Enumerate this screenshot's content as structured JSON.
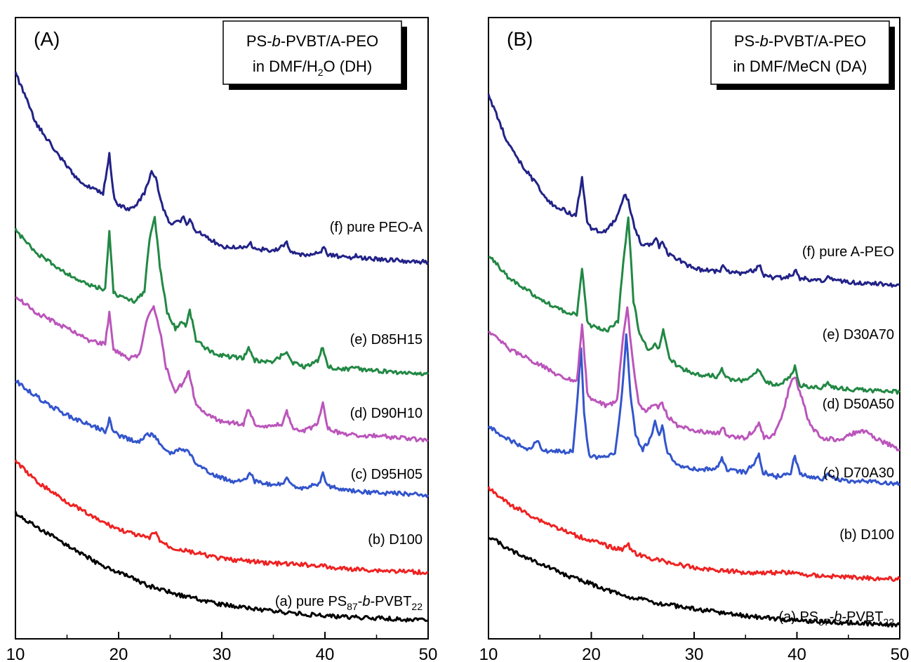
{
  "chart_data": [
    {
      "type": "line",
      "panel_label": "(A)",
      "legend": {
        "line1": [
          "PS-",
          "b",
          "-PVBT/A-PEO"
        ],
        "line2": [
          "in DMF/H",
          "2",
          "O (DH)"
        ]
      },
      "xlim": [
        10,
        50
      ],
      "xticks": [
        "10",
        "20",
        "30",
        "40",
        "50"
      ],
      "grid": false,
      "series": [
        {
          "label": [
            "(a) pure PS",
            "87",
            "-",
            "b",
            "-PVBT",
            "22"
          ],
          "color": "#000000",
          "x": [
            10,
            12,
            15,
            18,
            20,
            23,
            26,
            30,
            35,
            40,
            45,
            50
          ],
          "y": [
            0.52,
            0.46,
            0.38,
            0.3,
            0.26,
            0.2,
            0.16,
            0.12,
            0.09,
            0.07,
            0.06,
            0.05
          ]
        },
        {
          "label": [
            "(b) D100"
          ],
          "color": "#ee2222",
          "x": [
            10,
            12,
            15,
            18,
            20,
            22,
            23,
            23.5,
            24,
            25,
            28,
            30,
            35,
            39.7,
            40.5,
            45,
            50
          ],
          "y": [
            0.75,
            0.66,
            0.57,
            0.49,
            0.45,
            0.42,
            0.41,
            0.44,
            0.4,
            0.37,
            0.34,
            0.32,
            0.3,
            0.29,
            0.28,
            0.27,
            0.26
          ]
        },
        {
          "label": [
            "(c) D95H05"
          ],
          "color": "#3355cc",
          "x": [
            10,
            13,
            15,
            17,
            18.7,
            19.1,
            19.5,
            20,
            22,
            22.8,
            23.4,
            24.2,
            25,
            26,
            26.8,
            27.6,
            29,
            31,
            32.3,
            32.7,
            33.2,
            35,
            36,
            36.3,
            36.8,
            38,
            39.4,
            39.8,
            40.3,
            42,
            45,
            50
          ],
          "y": [
            1.1,
            1.0,
            0.95,
            0.91,
            0.88,
            0.93,
            0.88,
            0.86,
            0.83,
            0.87,
            0.86,
            0.82,
            0.78,
            0.8,
            0.79,
            0.73,
            0.69,
            0.66,
            0.67,
            0.7,
            0.66,
            0.64,
            0.65,
            0.67,
            0.64,
            0.63,
            0.65,
            0.69,
            0.64,
            0.62,
            0.61,
            0.6
          ]
        },
        {
          "label": [
            "(d) D90H10"
          ],
          "color": "#bb55bb",
          "x": [
            10,
            12,
            15,
            17,
            18.7,
            19.1,
            19.5,
            20,
            21,
            22,
            22.8,
            23.4,
            24,
            24.6,
            25.5,
            26.2,
            26.8,
            27.4,
            28.5,
            30,
            32.1,
            32.6,
            33.2,
            34.5,
            35.8,
            36.3,
            36.8,
            38,
            39.3,
            39.8,
            40.3,
            41.5,
            43,
            45,
            47,
            50
          ],
          "y": [
            1.47,
            1.4,
            1.33,
            1.28,
            1.26,
            1.4,
            1.24,
            1.22,
            1.2,
            1.21,
            1.38,
            1.42,
            1.32,
            1.16,
            1.05,
            1.09,
            1.14,
            1.01,
            0.95,
            0.92,
            0.91,
            0.98,
            0.91,
            0.9,
            0.91,
            0.97,
            0.9,
            0.88,
            0.91,
            1.0,
            0.89,
            0.87,
            0.86,
            0.86,
            0.85,
            0.84
          ]
        },
        {
          "label": [
            "(e) D85H15"
          ],
          "color": "#228844",
          "x": [
            10,
            12,
            15,
            17,
            18.7,
            19.1,
            19.5,
            20,
            21.5,
            22.5,
            23.0,
            23.5,
            24,
            24.7,
            25.5,
            26.1,
            26.5,
            26.9,
            27.5,
            28.5,
            30,
            32.1,
            32.6,
            33.2,
            35,
            36.0,
            36.3,
            36.8,
            38,
            39.3,
            39.8,
            40.3,
            42.5,
            43.0,
            43.5,
            46,
            50
          ],
          "y": [
            1.76,
            1.66,
            1.57,
            1.52,
            1.5,
            1.76,
            1.49,
            1.47,
            1.45,
            1.49,
            1.72,
            1.82,
            1.6,
            1.4,
            1.33,
            1.36,
            1.34,
            1.41,
            1.28,
            1.24,
            1.21,
            1.2,
            1.24,
            1.19,
            1.18,
            1.22,
            1.23,
            1.18,
            1.16,
            1.19,
            1.25,
            1.16,
            1.15,
            1.17,
            1.15,
            1.14,
            1.13
          ]
        },
        {
          "label": [
            "(f) pure PEO-A"
          ],
          "color": "#222288",
          "x": [
            10,
            12,
            14,
            16,
            18.5,
            19.1,
            19.6,
            20,
            21,
            21.5,
            22.5,
            23.2,
            23.6,
            24.2,
            25,
            26,
            26.3,
            26.6,
            26.9,
            27.4,
            28.5,
            30,
            32.4,
            32.8,
            33.2,
            35,
            36.0,
            36.3,
            36.8,
            38,
            39.5,
            39.9,
            40.3,
            42.5,
            43,
            43.5,
            46,
            50
          ],
          "y": [
            2.45,
            2.23,
            2.1,
            1.98,
            1.92,
            2.09,
            1.89,
            1.87,
            1.85,
            1.86,
            1.92,
            2.02,
            1.99,
            1.87,
            1.79,
            1.8,
            1.82,
            1.79,
            1.81,
            1.76,
            1.73,
            1.69,
            1.68,
            1.7,
            1.68,
            1.67,
            1.69,
            1.71,
            1.66,
            1.65,
            1.66,
            1.69,
            1.65,
            1.64,
            1.65,
            1.64,
            1.63,
            1.62
          ]
        }
      ]
    },
    {
      "type": "line",
      "panel_label": "(B)",
      "legend": {
        "line1": [
          "PS-",
          "b",
          "-PVBT/A-PEO"
        ],
        "line2": [
          "in DMF/MeCN (DA)"
        ]
      },
      "xlim": [
        10,
        50
      ],
      "xticks": [
        "10",
        "20",
        "30",
        "40",
        "50"
      ],
      "grid": false,
      "series": [
        {
          "label": [
            "(a) PS",
            "87",
            "-",
            "b",
            "-PVBT",
            "22"
          ],
          "color": "#000000",
          "x": [
            10,
            12,
            15,
            18,
            20,
            23,
            26,
            30,
            35,
            40,
            45,
            50
          ],
          "y": [
            0.42,
            0.36,
            0.3,
            0.24,
            0.21,
            0.16,
            0.13,
            0.1,
            0.07,
            0.05,
            0.04,
            0.03
          ]
        },
        {
          "label": [
            "(b) D100"
          ],
          "color": "#ee2222",
          "x": [
            10,
            12,
            15,
            18,
            20,
            22,
            23,
            23.5,
            24,
            25,
            28,
            30,
            35,
            39.7,
            40.5,
            45,
            50
          ],
          "y": [
            0.63,
            0.56,
            0.49,
            0.43,
            0.4,
            0.37,
            0.36,
            0.39,
            0.35,
            0.33,
            0.3,
            0.28,
            0.26,
            0.26,
            0.25,
            0.24,
            0.23
          ]
        },
        {
          "label": [
            "(c) D70A30"
          ],
          "color": "#3355cc",
          "x": [
            10,
            12,
            14,
            14.7,
            15.2,
            16,
            18.2,
            18.7,
            19.0,
            19.3,
            19.8,
            21,
            22.3,
            23.0,
            23.4,
            23.8,
            24.3,
            25,
            25.8,
            26.2,
            26.6,
            26.9,
            27.3,
            28,
            29,
            31,
            32.2,
            32.7,
            33.2,
            35,
            35.9,
            36.3,
            36.7,
            38,
            39.4,
            39.8,
            40.3,
            42.5,
            43,
            43.5,
            45,
            47,
            50
          ],
          "y": [
            0.9,
            0.84,
            0.8,
            0.84,
            0.8,
            0.79,
            0.79,
            1.05,
            1.25,
            0.95,
            0.77,
            0.76,
            0.78,
            1.05,
            1.3,
            1.05,
            0.86,
            0.8,
            0.85,
            0.92,
            0.86,
            0.91,
            0.8,
            0.74,
            0.72,
            0.71,
            0.72,
            0.76,
            0.71,
            0.7,
            0.74,
            0.78,
            0.7,
            0.68,
            0.7,
            0.77,
            0.69,
            0.67,
            0.69,
            0.67,
            0.66,
            0.66,
            0.65
          ]
        },
        {
          "label": [
            "(d) D50A50"
          ],
          "color": "#bb55bb",
          "x": [
            10,
            12,
            15,
            17,
            18.6,
            19.1,
            19.6,
            20,
            21.5,
            22.5,
            23.1,
            23.5,
            24.0,
            24.6,
            25.3,
            26.1,
            26.5,
            26.9,
            27.5,
            28.5,
            30,
            32.3,
            32.8,
            33.3,
            35,
            35.9,
            36.3,
            36.8,
            37.8,
            38.6,
            39.3,
            39.8,
            40.5,
            41.3,
            42.5,
            44,
            45.5,
            46.5,
            48,
            50
          ],
          "y": [
            1.32,
            1.24,
            1.17,
            1.12,
            1.1,
            1.35,
            1.05,
            1.02,
            0.99,
            1.01,
            1.3,
            1.42,
            1.2,
            1.0,
            0.96,
            1.0,
            0.98,
            1.0,
            0.94,
            0.9,
            0.88,
            0.87,
            0.89,
            0.86,
            0.85,
            0.89,
            0.91,
            0.85,
            0.86,
            0.95,
            1.08,
            1.12,
            1.02,
            0.9,
            0.85,
            0.84,
            0.87,
            0.88,
            0.84,
            0.8
          ]
        },
        {
          "label": [
            "(e) D30A70"
          ],
          "color": "#228844",
          "x": [
            10,
            12,
            15,
            17,
            18.6,
            19.1,
            19.6,
            20,
            21.5,
            22.6,
            23.1,
            23.6,
            24.1,
            24.7,
            25.5,
            26.2,
            26.6,
            27.0,
            27.6,
            28.5,
            30,
            32.3,
            32.7,
            33.2,
            35,
            35.9,
            36.3,
            36.8,
            38,
            39.3,
            39.8,
            40.3,
            42.5,
            43,
            43.5,
            46,
            50
          ],
          "y": [
            1.65,
            1.55,
            1.46,
            1.41,
            1.39,
            1.6,
            1.36,
            1.34,
            1.32,
            1.36,
            1.62,
            1.82,
            1.45,
            1.3,
            1.24,
            1.26,
            1.24,
            1.32,
            1.2,
            1.16,
            1.13,
            1.12,
            1.15,
            1.11,
            1.1,
            1.13,
            1.15,
            1.1,
            1.08,
            1.11,
            1.16,
            1.08,
            1.07,
            1.09,
            1.07,
            1.06,
            1.05
          ]
        },
        {
          "label": [
            "(f) pure A-PEO"
          ],
          "color": "#222288",
          "x": [
            10,
            12,
            14,
            16,
            18.5,
            19.1,
            19.6,
            20,
            21,
            21.5,
            22.5,
            23.2,
            23.6,
            24.2,
            25,
            26,
            26.3,
            26.6,
            26.9,
            27.4,
            28.5,
            30,
            32.4,
            32.8,
            33.2,
            35,
            36.0,
            36.3,
            36.8,
            38,
            39.5,
            39.9,
            40.3,
            42.5,
            43,
            43.5,
            46,
            50
          ],
          "y": [
            2.35,
            2.13,
            2.0,
            1.88,
            1.82,
            1.99,
            1.79,
            1.77,
            1.75,
            1.76,
            1.82,
            1.92,
            1.89,
            1.77,
            1.69,
            1.7,
            1.72,
            1.69,
            1.71,
            1.66,
            1.63,
            1.59,
            1.58,
            1.6,
            1.58,
            1.57,
            1.59,
            1.61,
            1.56,
            1.55,
            1.56,
            1.59,
            1.55,
            1.54,
            1.55,
            1.54,
            1.53,
            1.52
          ]
        }
      ]
    }
  ]
}
